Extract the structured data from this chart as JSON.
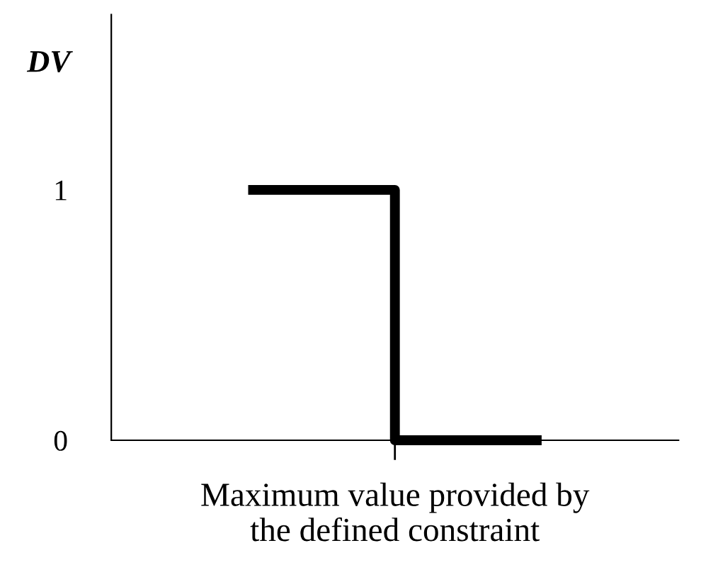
{
  "chart_data": {
    "type": "step",
    "ylabel": "DV",
    "xlabel": "Maximum value provided by\nthe defined constraint",
    "categories": [
      null,
      null
    ],
    "series": [
      {
        "color": "#000000",
        "values": [
          1,
          0
        ]
      }
    ],
    "ylim": [
      0,
      1.7
    ],
    "yticks": [
      0,
      1
    ],
    "grid": false,
    "legend": false,
    "line_style": "solid",
    "marker": "none"
  }
}
